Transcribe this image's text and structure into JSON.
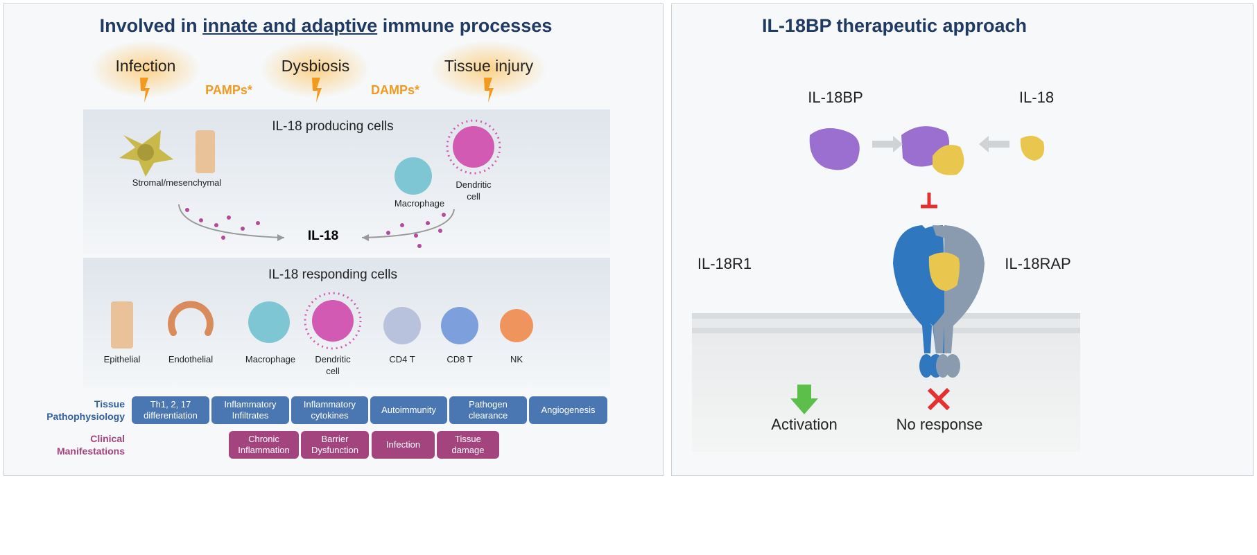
{
  "left": {
    "title_prefix": "Involved in ",
    "title_underlined": "innate and adaptive",
    "title_suffix": " immune processes",
    "triggers": [
      "Infection",
      "Dysbiosis",
      "Tissue injury"
    ],
    "pamps": "PAMPs*",
    "damps": "DAMPs*",
    "producing": {
      "heading": "IL-18 producing cells",
      "stromal": "Stromal/mesenchymal",
      "macrophage": "Macrophage",
      "dendritic": "Dendritic\ncell"
    },
    "il18": "IL-18",
    "responding": {
      "heading": "IL-18 responding cells",
      "cells": [
        "Epithelial",
        "Endothelial",
        "Macrophage",
        "Dendritic\ncell",
        "CD4 T",
        "CD8 T",
        "NK"
      ]
    },
    "tissue_label": "Tissue\nPathophysiology",
    "tissue_boxes": [
      "Th1, 2, 17\ndifferentiation",
      "Inflammatory\nInfiltrates",
      "Inflammatory\ncytokines",
      "Autoimmunity",
      "Pathogen\nclearance",
      "Angiogenesis"
    ],
    "clinical_label": "Clinical\nManifestations",
    "clinical_boxes": [
      "Chronic\nInflammation",
      "Barrier\nDysfunction",
      "Infection",
      "Tissue\ndamage"
    ]
  },
  "right": {
    "title": "IL-18BP therapeutic approach",
    "il18bp": "IL-18BP",
    "il18": "IL-18",
    "il18r1": "IL-18R1",
    "il18rap": "IL-18RAP",
    "activation": "Activation",
    "no_response": "No response"
  },
  "colors": {
    "title": "#1f3a63",
    "tissue": "#4a77b2",
    "clinical": "#a3447e",
    "amps": "#f29a1f",
    "il18bp": "#9b6fcf",
    "il18": "#e9c74f",
    "receptor1": "#2f78c0",
    "receptor2": "#8a9bb0",
    "activation": "#5cbf4a",
    "inhibit": "#e53030"
  }
}
